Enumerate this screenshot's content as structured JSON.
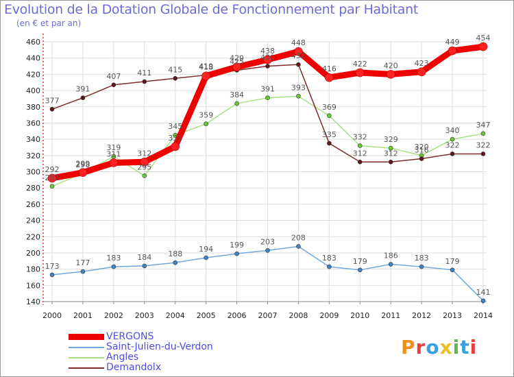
{
  "title": "Evolution de la Dotation Globale de Fonctionnement par Habitant",
  "subtitle": "(en € et par an)",
  "logo": {
    "letters": [
      "P",
      "r",
      "o",
      "x",
      "i",
      "t",
      "i"
    ],
    "colors": [
      "#f0901c",
      "#e8403c",
      "#3aa0e0",
      "#e8c020",
      "#5cb84a",
      "#3aa0e0",
      "#e8403c"
    ]
  },
  "colors": {
    "axis": "#cc0000",
    "grid": "#dddddd",
    "tick_text": "#222222",
    "value_text": "#555555",
    "title": "#6b6bd6"
  },
  "chart_data": {
    "type": "line",
    "title": "Evolution de la Dotation Globale de Fonctionnement par Habitant",
    "subtitle": "(en € et par an)",
    "xlabel": "",
    "ylabel": "",
    "x": [
      "2000",
      "2001",
      "2002",
      "2003",
      "2004",
      "2005",
      "2006",
      "2007",
      "2008",
      "2009",
      "2010",
      "2011",
      "2012",
      "2013",
      "2014"
    ],
    "ylim": [
      140,
      460
    ],
    "yticks": [
      140,
      160,
      180,
      200,
      220,
      240,
      260,
      280,
      300,
      320,
      340,
      360,
      380,
      400,
      420,
      440,
      460
    ],
    "grid": true,
    "legend_position": "bottom-left",
    "series": [
      {
        "name": "VERGONS",
        "color": "#ee0000",
        "marker": "#ff2222",
        "width": 9,
        "values": [
          292,
          299,
          311,
          312,
          331,
          418,
          429,
          438,
          448,
          416,
          422,
          420,
          423,
          449,
          454
        ],
        "labels": [
          "292",
          "299",
          "311",
          "312",
          "331",
          "418",
          "429",
          "438",
          "448",
          "416",
          "422",
          "420",
          "423",
          "449",
          "454"
        ]
      },
      {
        "name": "Saint-Julien-du-Verdon",
        "color": "#6fa8dc",
        "marker": "#3d85c6",
        "width": 1.5,
        "values": [
          173,
          177,
          183,
          184,
          188,
          194,
          199,
          203,
          208,
          183,
          179,
          186,
          183,
          179,
          141
        ],
        "labels": [
          "173",
          "177",
          "183",
          "184",
          "188",
          "194",
          "199",
          "203",
          "208",
          "183",
          "179",
          "186",
          "183",
          "179",
          "141"
        ]
      },
      {
        "name": "Angles",
        "color": "#a8e080",
        "marker": "#66cc33",
        "width": 1.5,
        "values": [
          282,
          298,
          319,
          295,
          345,
          359,
          384,
          391,
          393,
          369,
          332,
          329,
          320,
          340,
          347
        ],
        "labels": [
          "282",
          "298",
          "319",
          "295",
          "345",
          "359",
          "384",
          "391",
          "393",
          "369",
          "332",
          "329",
          "320",
          "340",
          "347"
        ]
      },
      {
        "name": "Demandolx",
        "color": "#7b2a2a",
        "marker": "#5a1a1a",
        "width": 1.5,
        "values": [
          377,
          391,
          407,
          411,
          415,
          419,
          425,
          430,
          432,
          335,
          312,
          312,
          316,
          322,
          322
        ],
        "labels": [
          "377",
          "391",
          "407",
          "411",
          "415",
          "419",
          "425",
          "430",
          "432",
          "335",
          "312",
          "312",
          "316",
          "322",
          "322"
        ]
      }
    ]
  }
}
